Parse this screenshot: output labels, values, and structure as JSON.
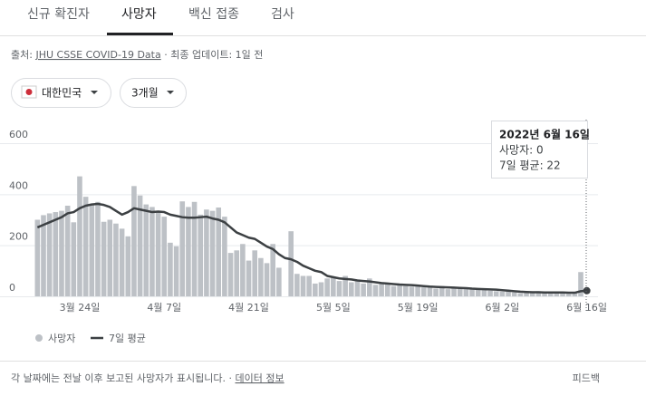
{
  "tabs": [
    "신규 확진자",
    "사망자",
    "백신 접종",
    "검사"
  ],
  "active_tab": 1,
  "source": {
    "label": "출처:",
    "link": "JHU CSSE COVID-19 Data",
    "updated": "· 최종 업데이트: 1일 전"
  },
  "filters": [
    "대한민국",
    "3개월"
  ],
  "tooltip": {
    "title": "2022년 6월 16일",
    "lines": [
      "사망자: 0",
      "7일 평균: 22"
    ]
  },
  "chart_data": {
    "type": "bar",
    "categories": [
      null,
      null,
      null,
      null,
      null,
      null,
      null,
      "3월 24일",
      null,
      null,
      null,
      null,
      null,
      null,
      null,
      null,
      null,
      null,
      null,
      null,
      null,
      "4월 7일",
      null,
      null,
      null,
      null,
      null,
      null,
      null,
      null,
      null,
      null,
      null,
      null,
      null,
      "4월 21일",
      null,
      null,
      null,
      null,
      null,
      null,
      null,
      null,
      null,
      null,
      null,
      null,
      null,
      "5월 5일",
      null,
      null,
      null,
      null,
      null,
      null,
      null,
      null,
      null,
      null,
      null,
      null,
      null,
      "5월 19일",
      null,
      null,
      null,
      null,
      null,
      null,
      null,
      null,
      null,
      null,
      null,
      null,
      null,
      "6월 2일",
      null,
      null,
      null,
      null,
      null,
      null,
      null,
      null,
      null,
      null,
      null,
      null,
      null,
      "6월 16일"
    ],
    "series": [
      {
        "name": "사망자",
        "color": "#bdc1c6",
        "values": [
          300,
          318,
          325,
          330,
          335,
          355,
          290,
          470,
          390,
          360,
          370,
          292,
          300,
          285,
          265,
          235,
          432,
          395,
          360,
          350,
          335,
          312,
          210,
          196,
          372,
          350,
          370,
          320,
          340,
          335,
          348,
          312,
          170,
          180,
          205,
          140,
          180,
          150,
          130,
          205,
          112,
          0,
          255,
          88,
          80,
          80,
          50,
          55,
          70,
          75,
          60,
          80,
          55,
          65,
          50,
          70,
          45,
          55,
          48,
          40,
          45,
          40,
          38,
          42,
          35,
          38,
          30,
          40,
          28,
          32,
          35,
          28,
          30,
          25,
          30,
          22,
          20,
          18,
          22,
          15,
          12,
          18,
          15,
          20,
          14,
          16,
          12,
          18,
          10,
          15,
          95,
          0
        ]
      },
      {
        "name": "7일 평균",
        "color": "#3c4043",
        "type": "line",
        "values": [
          270,
          280,
          290,
          300,
          310,
          325,
          330,
          345,
          355,
          360,
          362,
          358,
          350,
          335,
          320,
          330,
          345,
          340,
          335,
          330,
          332,
          330,
          320,
          315,
          310,
          308,
          308,
          310,
          312,
          305,
          300,
          290,
          270,
          250,
          240,
          230,
          225,
          210,
          195,
          185,
          165,
          150,
          145,
          135,
          120,
          110,
          100,
          95,
          80,
          75,
          70,
          68,
          66,
          62,
          60,
          58,
          55,
          52,
          50,
          48,
          46,
          45,
          44,
          42,
          40,
          38,
          37,
          36,
          35,
          34,
          33,
          32,
          30,
          29,
          28,
          27,
          26,
          24,
          22,
          20,
          18,
          17,
          16,
          16,
          15,
          15,
          15,
          15,
          14,
          14,
          20,
          22
        ]
      }
    ],
    "ylim": [
      0,
      600
    ],
    "yticks": [
      0,
      200,
      400,
      600
    ],
    "grid": true
  },
  "footer": {
    "note": "각 날짜에는 전날 이후 보고된 사망자가 표시됩니다. ·",
    "link": "데이터 정보",
    "feedback": "피드백"
  }
}
